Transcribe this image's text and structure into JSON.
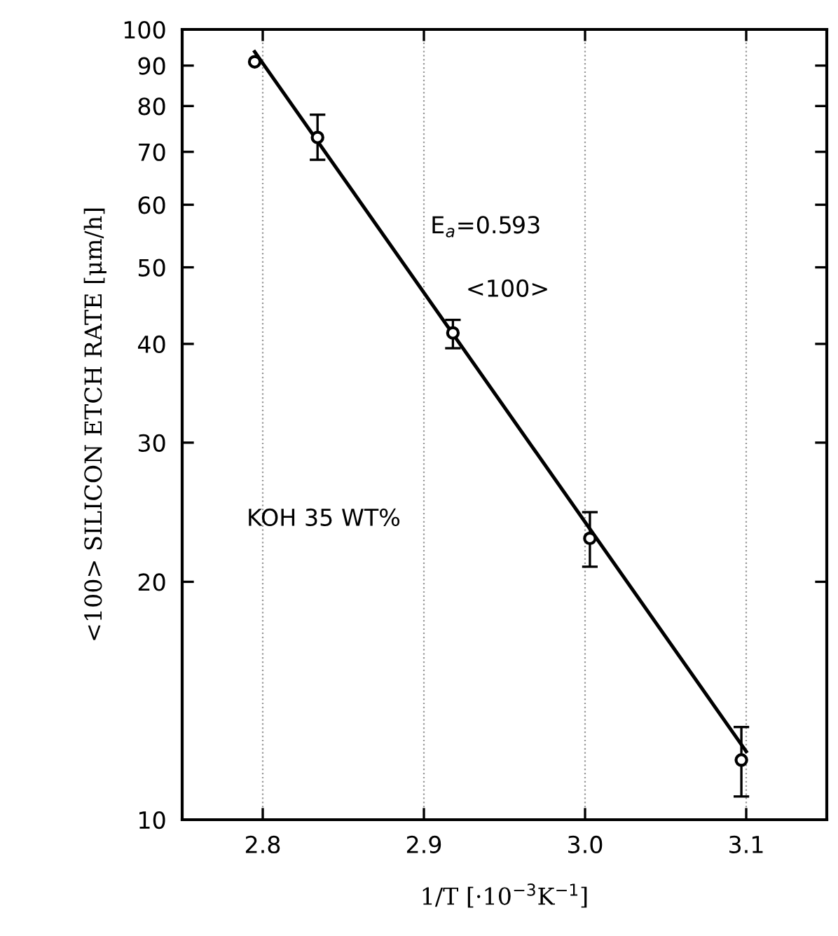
{
  "chart_data": {
    "type": "scatter",
    "xlabel": "1/T [·10$^{−3}$K$^{−1}$]",
    "ylabel": "<100> SILICON ETCH RATE [μm/h]",
    "annotations": [
      "E$_{a}$=0.593",
      "<100>",
      "KOH 35 WT%"
    ],
    "log": "y",
    "xlim": [
      2.75,
      3.15
    ],
    "xticks": [
      2.8,
      2.9,
      {
        "value": 3.0,
        "label": "3.0"
      },
      3.1
    ],
    "ylim": [
      10,
      100
    ],
    "yticks": [
      10,
      20,
      30,
      40,
      50,
      60,
      70,
      80,
      90,
      100
    ],
    "grid": "x",
    "marker": "circle",
    "series": [
      {
        "color": "#000000",
        "x": [
          2.795,
          2.834,
          2.918,
          3.003,
          3.097
        ],
        "values": [
          91,
          73,
          41.3,
          22.7,
          11.9
        ],
        "errors": [
          null,
          [
            68.4,
            78
          ],
          [
            39.5,
            42.9
          ],
          [
            20.9,
            24.5
          ],
          [
            10.7,
            13.1
          ]
        ]
      },
      {
        "type": "line",
        "color": "#000000",
        "marker": "none",
        "line_style": "solid",
        "x": [
          2.795,
          3.1
        ],
        "values": [
          93.7,
          12.2
        ]
      }
    ]
  }
}
